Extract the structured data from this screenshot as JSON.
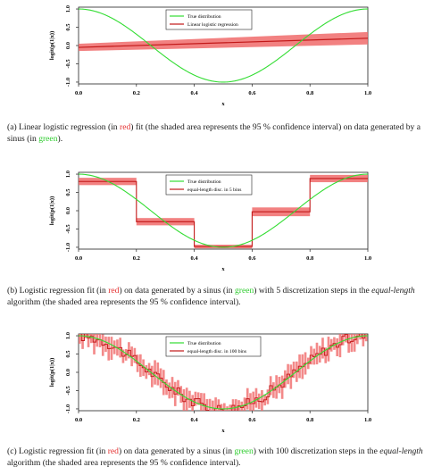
{
  "colors": {
    "true_line": "#33dd33",
    "fit_line": "#c21818",
    "band": "#f06b6b",
    "red_text": "#e53030",
    "green_text": "#2ecc2e"
  },
  "panels": [
    {
      "caption": {
        "prefix": "(a)  Linear logistic regression (in ",
        "red_word": "red",
        "middle": ") fit (the shaded area represents the 95 % confidence interval) on data generated by a sinus (in ",
        "green_word": "green",
        "suffix": ")."
      }
    },
    {
      "caption": {
        "prefix": "(b)  Logistic regression fit (in ",
        "red_word": "red",
        "middle": ") on data generated by a sinus (in ",
        "green_word": "green",
        "middle2": ") with 5 discretization steps in the ",
        "italic": "equal-length",
        "suffix": " algorithm (the shaded area represents the 95 % confidence interval)."
      }
    },
    {
      "caption": {
        "prefix": "(c)  Logistic regression fit (in ",
        "red_word": "red",
        "middle": ") on data generated by a sinus (in ",
        "green_word": "green",
        "middle2": ") with 100 discretization steps in the ",
        "italic": "equal-length",
        "suffix": " algorithm (the shaded area represents the 95 % confidence interval)."
      }
    }
  ],
  "chart_data": [
    {
      "type": "line",
      "xlabel": "x",
      "ylabel": "logit(p(1|x))",
      "xlim": [
        0,
        1
      ],
      "ylim": [
        -1.05,
        1.05
      ],
      "xticks": [
        "0.0",
        "0.2",
        "0.4",
        "0.6",
        "0.8",
        "1.0"
      ],
      "yticks": [
        "-1.0",
        "-0.5",
        "0.0",
        "0.5",
        "1.0"
      ],
      "legend": {
        "position": "top-center",
        "entries": [
          "True distribution",
          "Linear logistic regression"
        ]
      },
      "series": [
        {
          "name": "True distribution",
          "function": "sin(2*pi*x + pi/2)",
          "x_range": [
            0,
            1
          ]
        },
        {
          "name": "Linear logistic regression",
          "x": [
            0,
            1
          ],
          "y": [
            -0.05,
            0.2
          ],
          "ci_lower": [
            -0.15,
            0.03
          ],
          "ci_upper": [
            0.05,
            0.37
          ]
        }
      ]
    },
    {
      "type": "line",
      "xlabel": "x",
      "ylabel": "logit(p(1|x))",
      "xlim": [
        0,
        1
      ],
      "ylim": [
        -1.05,
        1.05
      ],
      "xticks": [
        "0.0",
        "0.2",
        "0.4",
        "0.6",
        "0.8",
        "1.0"
      ],
      "yticks": [
        "-1.0",
        "-0.5",
        "0.0",
        "0.5",
        "1.0"
      ],
      "legend": {
        "position": "top-center",
        "entries": [
          "True distribution",
          "equal-length disc. in 5 bins"
        ]
      },
      "series": [
        {
          "name": "True distribution",
          "function": "sin(2*pi*x + pi/2)",
          "x_range": [
            0,
            1
          ]
        },
        {
          "name": "equal-length disc. in 5 bins",
          "steps": [
            {
              "x0": 0.0,
              "x1": 0.2,
              "y": 0.8,
              "lo": 0.7,
              "hi": 0.9
            },
            {
              "x0": 0.2,
              "x1": 0.4,
              "y": -0.3,
              "lo": -0.4,
              "hi": -0.2
            },
            {
              "x0": 0.4,
              "x1": 0.6,
              "y": -0.98,
              "lo": -1.03,
              "hi": -0.93
            },
            {
              "x0": 0.6,
              "x1": 0.8,
              "y": -0.03,
              "lo": -0.15,
              "hi": 0.09
            },
            {
              "x0": 0.8,
              "x1": 1.0,
              "y": 0.88,
              "lo": 0.78,
              "hi": 0.98
            }
          ]
        }
      ]
    },
    {
      "type": "line",
      "xlabel": "x",
      "ylabel": "logit(p(1|x))",
      "xlim": [
        0,
        1
      ],
      "ylim": [
        -1.05,
        1.05
      ],
      "xticks": [
        "0.0",
        "0.2",
        "0.4",
        "0.6",
        "0.8",
        "1.0"
      ],
      "yticks": [
        "-1.0",
        "-0.5",
        "0.0",
        "0.5",
        "1.0"
      ],
      "legend": {
        "position": "top-center",
        "entries": [
          "True distribution",
          "equal-length disc. in 100 bins"
        ]
      },
      "series": [
        {
          "name": "True distribution",
          "function": "sin(2*pi*x + pi/2)",
          "x_range": [
            0,
            1
          ]
        },
        {
          "name": "equal-length disc. in 100 bins",
          "bins": 100,
          "follows": "True distribution",
          "noise_amplitude": 0.15,
          "ci_half_width": 0.25
        }
      ]
    }
  ]
}
